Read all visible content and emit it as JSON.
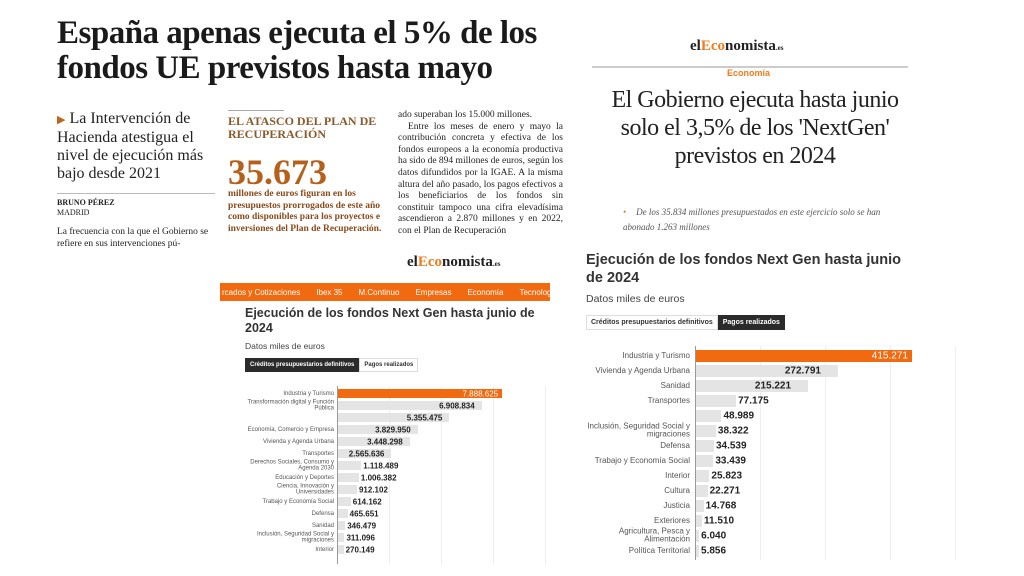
{
  "clipping_left": {
    "headline": "España apenas ejecuta el 5% de los fondos UE previstos hasta mayo",
    "subheadline": "La Intervención de Hacienda atestigua el nivel de ejecución más bajo desde 2021",
    "author": "BRUNO PÉREZ",
    "city": "MADRID",
    "para1": "La frecuencia con la que el Gobierno se refiere en sus intervenciones pú-",
    "box": {
      "kicker": "EL ATASCO DEL PLAN DE RECUPERACIÓN",
      "figure": "35.673",
      "desc": "millones de euros figuran en los presupuestos prorrogados de este año como disponibles para los proyectos e inversiones del Plan de Recuperación."
    },
    "col3_p1": "ado superaban los 15.000 millones.",
    "col3_p2": "Entre los meses de enero y mayo la contribución concreta y efectiva de los fondos europeos a la economía productiva ha sido de 894 millones de euros, según los datos difundidos por la IGAE. A la misma altura del año pasado, los pagos efectivos a los beneficiarios de los fondos sin constituir tampoco una cifra elevadísima ascendieron a 2.870 millones y en 2022, con el Plan de Recuperación"
  },
  "clipping_right": {
    "logo": {
      "pre": "el",
      "accent": "Eco",
      "post": "nomista",
      "suffix": ".es"
    },
    "section": "Economía",
    "headline": "El Gobierno ejecuta hasta junio solo el 3,5% de los 'NextGen' previstos en 2024",
    "lead": "De los 35.834 millones presupuestados en este ejercicio solo se han abonado 1.263 millones"
  },
  "site_nav": {
    "logo": {
      "pre": "el",
      "accent": "Eco",
      "post": "nomista",
      "suffix": ".es"
    },
    "items": [
      "rcados y Cotizaciones",
      "Ibex 35",
      "M.Continuo",
      "Empresas",
      "Economía",
      "Tecnología"
    ]
  },
  "colors": {
    "accent": "#f26a10",
    "bar": "#e4e4e4",
    "highlight_text": "#b5611c"
  },
  "chart_data": [
    {
      "type": "bar",
      "orientation": "horizontal",
      "title": "Ejecución de los fondos Next Gen hasta junio de 2024",
      "subtitle": "Datos miles de euros",
      "tabs": [
        {
          "label": "Créditos presupuestarios definitivos",
          "active": true
        },
        {
          "label": "Pagos realizados",
          "active": false
        }
      ],
      "grid": true,
      "xlim": [
        0,
        10000000
      ],
      "categories": [
        "Industria y Turismo",
        "Transformación digital y Función Pública",
        "",
        "Economía, Comercio y Empresa",
        "Vivienda y Agenda Urbana",
        "Transportes",
        "Derechos Sociales, Consumo y Agenda 2030",
        "Educación y Deportes",
        "Ciencia, Innovación y Universidades",
        "Trabajo y Economía Social",
        "Defensa",
        "Sanidad",
        "Inclusión, Seguridad Social y migraciones",
        "Interior"
      ],
      "values": [
        7888625,
        6908834,
        5355475,
        3829950,
        3448298,
        2565636,
        1118489,
        1006382,
        912102,
        614162,
        465651,
        346479,
        311096,
        270149
      ],
      "labels": [
        "7.888.625",
        "6.908.834",
        "5.355.475",
        "3.829.950",
        "3.448.298",
        "2.565.636",
        "1.118.489",
        "1.006.382",
        "912.102",
        "614.162",
        "465.651",
        "346.479",
        "311.096",
        "270.149"
      ]
    },
    {
      "type": "bar",
      "orientation": "horizontal",
      "title": "Ejecución de los fondos Next Gen hasta junio de 2024",
      "subtitle": "Datos miles de euros",
      "tabs": [
        {
          "label": "Créditos presupuestarios definitivos",
          "active": false
        },
        {
          "label": "Pagos realizados",
          "active": true
        }
      ],
      "grid": true,
      "xlim": [
        0,
        500000
      ],
      "categories": [
        "Industria y Turismo",
        "Vivienda y Agenda Urbana",
        "Sanidad",
        "Transportes",
        "",
        "Inclusión, Seguridad Social y migraciones",
        "Defensa",
        "Trabajo y Economía Social",
        "Interior",
        "Cultura",
        "Justicia",
        "Exteriores",
        "Agricultura, Pesca y Alimentación",
        "Política Territorial"
      ],
      "values": [
        415271,
        272791,
        215221,
        77175,
        48989,
        38322,
        34539,
        33439,
        25823,
        22271,
        14768,
        11510,
        6040,
        5856
      ],
      "labels": [
        "415.271",
        "272.791",
        "215.221",
        "77.175",
        "48.989",
        "38.322",
        "34.539",
        "33.439",
        "25.823",
        "22.271",
        "14.768",
        "11.510",
        "6.040",
        "5.856"
      ]
    }
  ]
}
